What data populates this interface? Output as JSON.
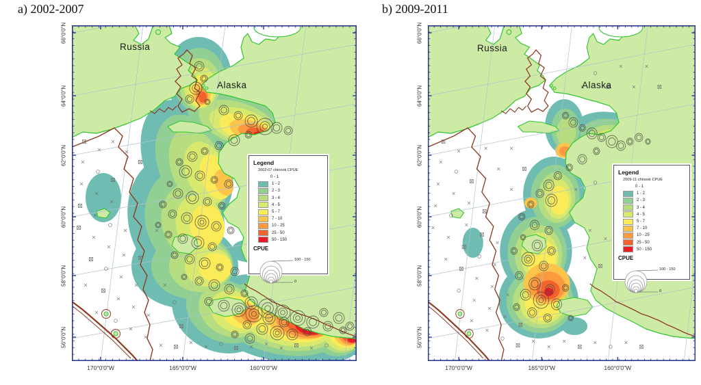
{
  "panels": [
    {
      "title": "a) 2002-2007",
      "russia_label": "Russia",
      "alaska_label": "Alaska",
      "lat_ticks": [
        "66°0'0\"N",
        "64°0'0\"N",
        "62°0'0\"N",
        "60°0'0\"N",
        "58°0'0\"N",
        "56°0'0\"N"
      ],
      "lon_ticks": [
        "170°0'0\"W",
        "165°0'0\"W",
        "160°0'0\"W"
      ],
      "legend": {
        "title": "Legend",
        "subtitle": "2002-07 chinook CPUE",
        "classes": [
          {
            "label": "0 - 1",
            "color": ""
          },
          {
            "label": "1 - 2",
            "color": "#6FBDB2"
          },
          {
            "label": "2 - 3",
            "color": "#92CF93"
          },
          {
            "label": "3 - 4",
            "color": "#B6DE80"
          },
          {
            "label": "4 - 5",
            "color": "#D9E96E"
          },
          {
            "label": "5 - 7",
            "color": "#FCEB59"
          },
          {
            "label": "7 - 10",
            "color": "#FDC44C"
          },
          {
            "label": "10 - 25",
            "color": "#FB9A3E"
          },
          {
            "label": "25 - 50",
            "color": "#F4632C"
          },
          {
            "label": "50 - 150",
            "color": "#EA1C25"
          }
        ],
        "cpue_title": "CPUE",
        "circle_max": "100 - 150",
        "circle_min": "0"
      }
    },
    {
      "title": "b) 2009-2011",
      "russia_label": "Russia",
      "alaska_label": "Alaska",
      "lat_ticks": [
        "66°0'0\"N",
        "64°0'0\"N",
        "62°0'0\"N",
        "60°0'0\"N",
        "58°0'0\"N",
        "56°0'0\"N"
      ],
      "lon_ticks": [
        "170°0'0\"W",
        "165°0'0\"W",
        "160°0'0\"W"
      ],
      "legend": {
        "title": "Legend",
        "subtitle": "2009-11 chinook CPUE",
        "classes": [
          {
            "label": "0 - 1",
            "color": ""
          },
          {
            "label": "1 - 2",
            "color": "#6FBDB2"
          },
          {
            "label": "2 - 3",
            "color": "#92CF93"
          },
          {
            "label": "3 - 4",
            "color": "#B6DE80"
          },
          {
            "label": "4 - 5",
            "color": "#D9E96E"
          },
          {
            "label": "5 - 7",
            "color": "#FCEB59"
          },
          {
            "label": "7 - 10",
            "color": "#FDC44C"
          },
          {
            "label": "10 - 25",
            "color": "#FB9A3E"
          },
          {
            "label": "25 - 50",
            "color": "#F4632C"
          },
          {
            "label": "50 - 150",
            "color": "#EA1C25"
          }
        ],
        "cpue_title": "CPUE",
        "circle_max": "100 - 150",
        "circle_min": "0"
      }
    }
  ],
  "colors": {
    "land": "#CEEBA5",
    "coast": "#2FC52F",
    "frame": "#2B3990",
    "grid": "#AFC3CE",
    "shelf_line": "#8C3B22",
    "heat": [
      "#6FBDB2",
      "#92CF93",
      "#B6DE80",
      "#D9E96E",
      "#FCEB59",
      "#FDC44C",
      "#FB9A3E",
      "#F4632C",
      "#EA1C25"
    ]
  }
}
